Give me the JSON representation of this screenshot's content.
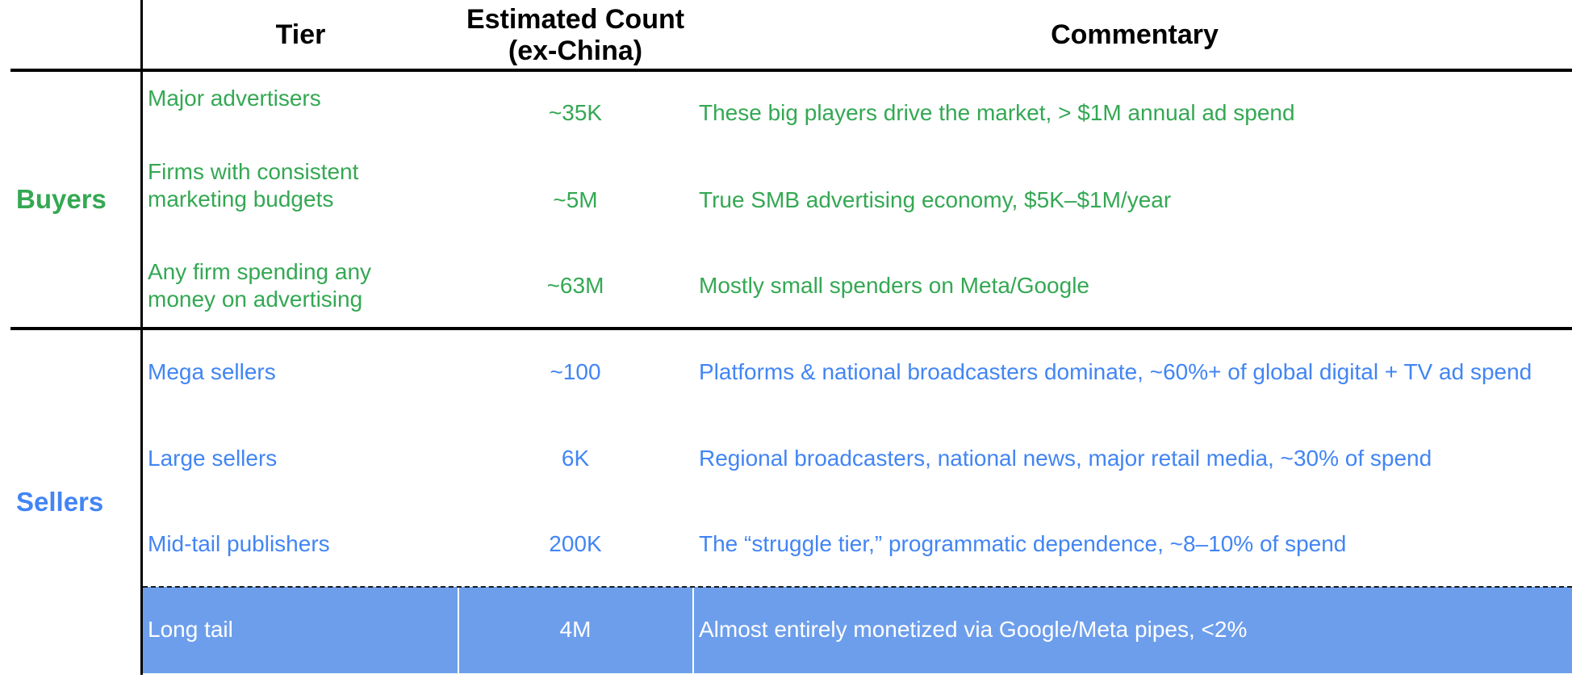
{
  "colors": {
    "buyers": "#34a853",
    "sellers": "#4285f4",
    "highlight_bg": "#6d9eeb",
    "highlight_text": "#ffffff",
    "header_text": "#000000"
  },
  "headers": {
    "tier": "Tier",
    "count_line1": "Estimated Count",
    "count_line2": "(ex-China)",
    "commentary": "Commentary"
  },
  "groups": {
    "buyers": "Buyers",
    "sellers": "Sellers"
  },
  "buyers": [
    {
      "tier_line1": "Major advertisers",
      "tier_line2": "",
      "count": "~35K",
      "commentary": "These big players drive the market, > $1M annual ad spend"
    },
    {
      "tier_line1": "Firms with consistent",
      "tier_line2": "marketing budgets",
      "count": "~5M",
      "commentary": "True SMB advertising economy, $5K–$1M/year"
    },
    {
      "tier_line1": "Any firm spending any",
      "tier_line2": "money on advertising",
      "count": "~63M",
      "commentary": "Mostly small spenders on Meta/Google"
    }
  ],
  "sellers": [
    {
      "tier": "Mega sellers",
      "count": "~100",
      "commentary": "Platforms & national broadcasters dominate, ~60%+ of global digital + TV ad spend"
    },
    {
      "tier": "Large sellers",
      "count": "6K",
      "commentary": "Regional broadcasters, national news, major retail media, ~30% of spend"
    },
    {
      "tier": "Mid-tail publishers",
      "count": "200K",
      "commentary": "The “struggle tier,” programmatic dependence, ~8–10% of spend"
    },
    {
      "tier": "Long tail",
      "count": "4M",
      "commentary": "Almost entirely monetized via Google/Meta pipes, <2%"
    }
  ]
}
